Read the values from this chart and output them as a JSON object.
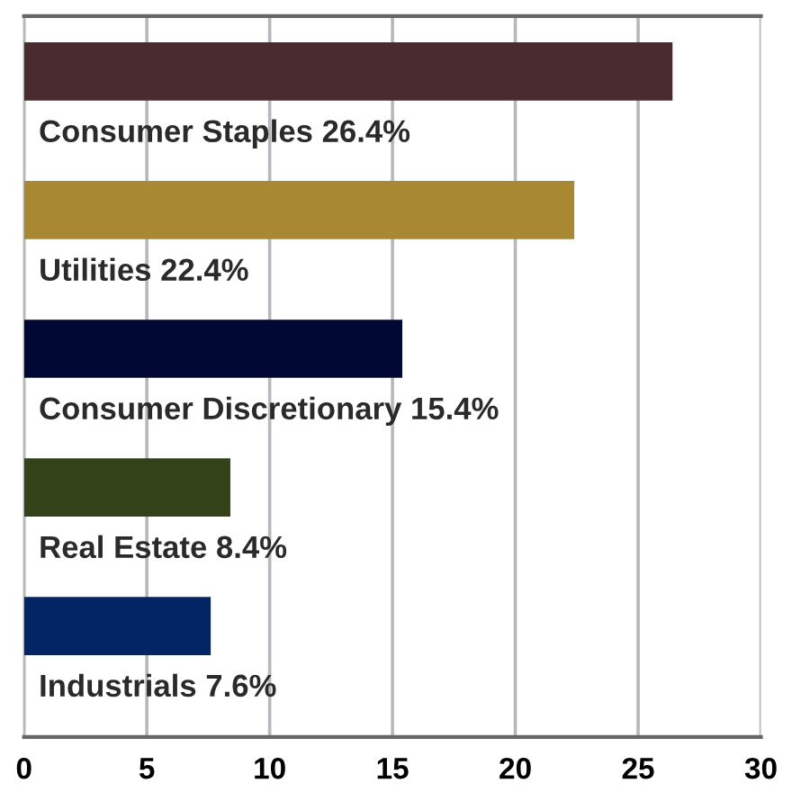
{
  "chart_data": {
    "type": "bar",
    "orientation": "horizontal",
    "categories": [
      "Consumer Staples 26.4%",
      "Utilities 22.4%",
      "Consumer Discretionary 15.4%",
      "Real Estate 8.4%",
      "Industrials 7.6%"
    ],
    "values": [
      26.4,
      22.4,
      15.4,
      8.4,
      7.6
    ],
    "colors": [
      "#4a2b2f",
      "#a88833",
      "#010833",
      "#334219",
      "#022663"
    ],
    "xlim": [
      0,
      30
    ],
    "xticks": [
      0,
      5,
      10,
      15,
      20,
      25,
      30
    ],
    "grid": "x"
  }
}
